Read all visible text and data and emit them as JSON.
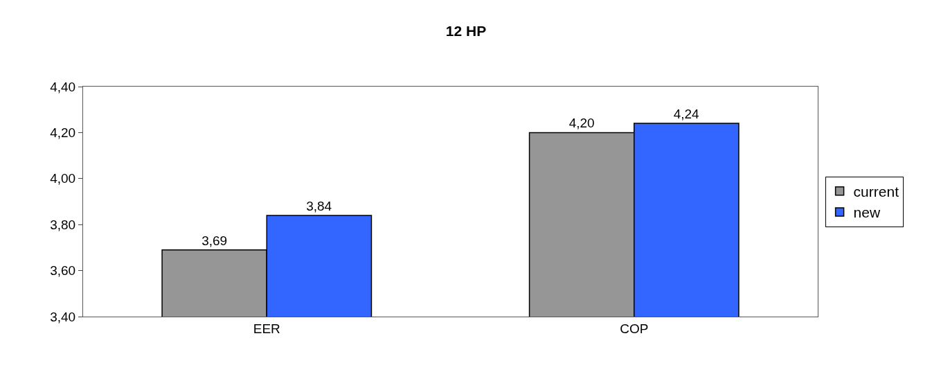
{
  "chart_data": {
    "type": "bar",
    "title": "12 HP",
    "categories": [
      "EER",
      "COP"
    ],
    "series": [
      {
        "name": "current",
        "color": "#969696",
        "values": [
          3.69,
          4.2
        ],
        "value_labels": [
          "3,69",
          "4,20"
        ]
      },
      {
        "name": "new",
        "color": "#3366ff",
        "values": [
          3.84,
          4.24
        ],
        "value_labels": [
          "3,84",
          "4,24"
        ]
      }
    ],
    "ylim": [
      3.4,
      4.4
    ],
    "yticks": [
      {
        "value": 3.4,
        "label": "3,40"
      },
      {
        "value": 3.6,
        "label": "3,60"
      },
      {
        "value": 3.8,
        "label": "3,80"
      },
      {
        "value": 4.0,
        "label": "4,00"
      },
      {
        "value": 4.2,
        "label": "4,20"
      },
      {
        "value": 4.4,
        "label": "4,40"
      }
    ],
    "grid": false,
    "legend": "right"
  }
}
